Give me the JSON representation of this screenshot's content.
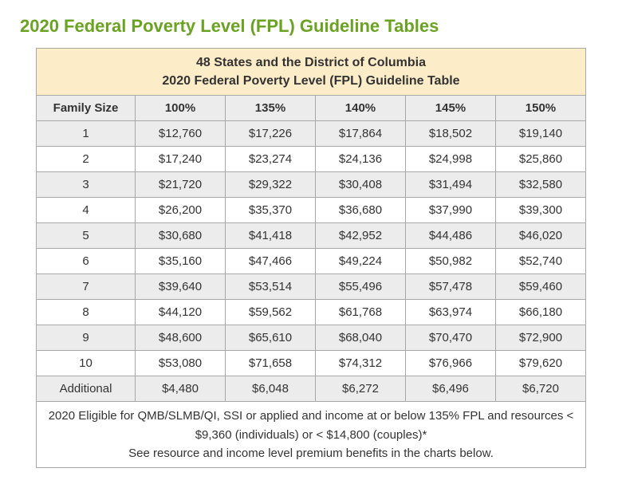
{
  "title": "2020 Federal Poverty Level (FPL) Guideline Tables",
  "table": {
    "header_line1": "48 States and the District of Columbia",
    "header_line2": "2020 Federal Poverty Level (FPL) Guideline Table",
    "columns": [
      "Family Size",
      "100%",
      "135%",
      "140%",
      "145%",
      "150%"
    ],
    "rows": [
      [
        "1",
        "$12,760",
        "$17,226",
        "$17,864",
        "$18,502",
        "$19,140"
      ],
      [
        "2",
        "$17,240",
        "$23,274",
        "$24,136",
        "$24,998",
        "$25,860"
      ],
      [
        "3",
        "$21,720",
        "$29,322",
        "$30,408",
        "$31,494",
        "$32,580"
      ],
      [
        "4",
        "$26,200",
        "$35,370",
        "$36,680",
        "$37,990",
        "$39,300"
      ],
      [
        "5",
        "$30,680",
        "$41,418",
        "$42,952",
        "$44,486",
        "$46,020"
      ],
      [
        "6",
        "$35,160",
        "$47,466",
        "$49,224",
        "$50,982",
        "$52,740"
      ],
      [
        "7",
        "$39,640",
        "$53,514",
        "$55,496",
        "$57,478",
        "$59,460"
      ],
      [
        "8",
        "$44,120",
        "$59,562",
        "$61,768",
        "$63,974",
        "$66,180"
      ],
      [
        "9",
        "$48,600",
        "$65,610",
        "$68,040",
        "$70,470",
        "$72,900"
      ],
      [
        "10",
        "$53,080",
        "$71,658",
        "$74,312",
        "$76,966",
        "$79,620"
      ],
      [
        "Additional",
        "$4,480",
        "$6,048",
        "$6,272",
        "$6,496",
        "$6,720"
      ]
    ],
    "footer_line1": "2020 Eligible for QMB/SLMB/QI, SSI or applied and income at or below 135% FPL and resources < $9,360 (individuals) or < $14,800 (couples)*",
    "footer_line2": "See resource and income level premium benefits in the charts below."
  },
  "style": {
    "title_color": "#6aa221",
    "header_bg": "#fdecc8",
    "zebra_bg": "#ececec",
    "border_color": "#a8a8a8",
    "text_color": "#333333",
    "title_fontsize": 22,
    "cell_fontsize": 15,
    "column_widths_pct": [
      18,
      16.4,
      16.4,
      16.4,
      16.4,
      16.4
    ]
  }
}
